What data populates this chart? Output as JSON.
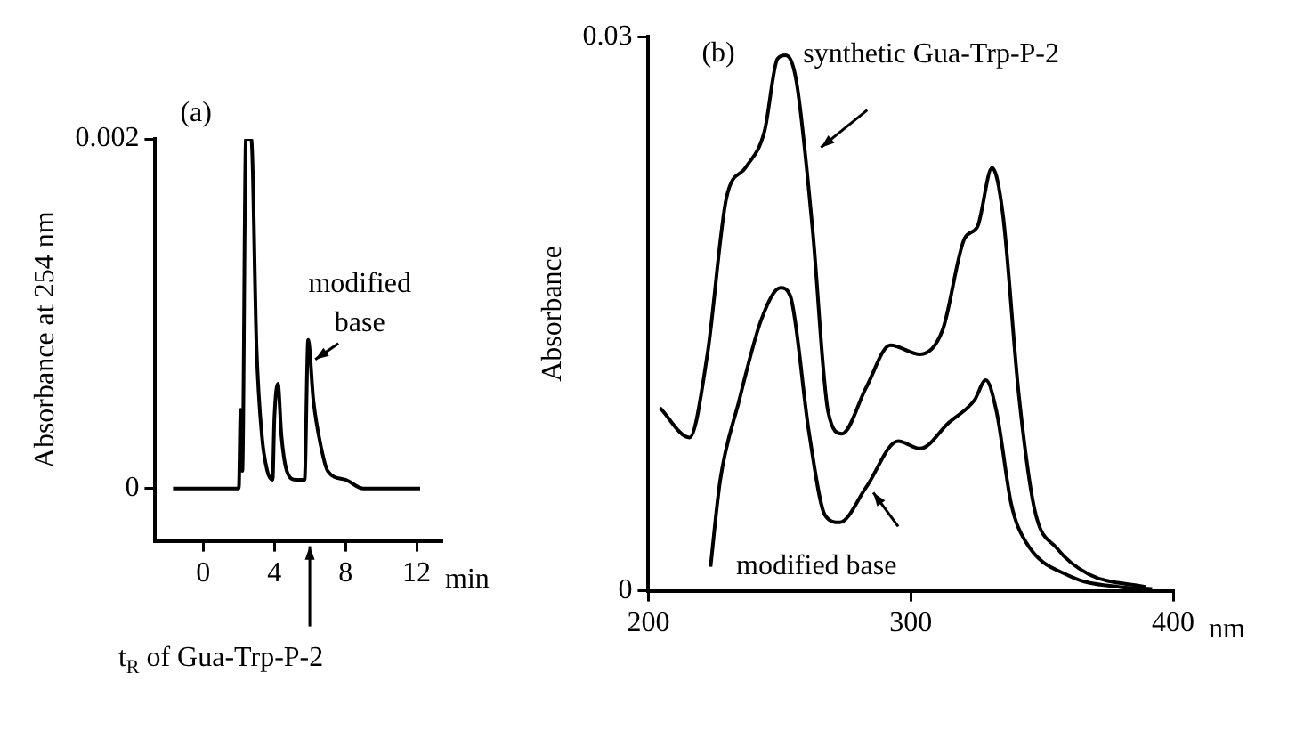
{
  "chart_data": [
    {
      "type": "line",
      "title": "(a)",
      "xlabel": "min",
      "ylabel": "Absorbance at 254 nm",
      "x": [
        -1.7,
        1.0,
        2.0,
        2.1,
        2.2,
        2.4,
        2.7,
        3.0,
        3.3,
        3.6,
        3.9,
        4.0,
        4.2,
        4.4,
        4.7,
        5.2,
        5.7,
        5.9,
        6.2,
        6.6,
        7.0,
        8.0,
        9.0,
        12.2
      ],
      "series": [
        {
          "color": "#000000",
          "values": [
            0,
            0,
            0,
            0.00045,
            0.0001,
            0.002,
            0.002,
            0.0008,
            0.0003,
            0.0001,
            5e-05,
            0.0004,
            0.0006,
            0.0003,
            0.0001,
            5e-05,
            5e-05,
            0.00085,
            0.0005,
            0.00025,
            0.0001,
            5e-05,
            0,
            0
          ]
        }
      ],
      "xlim": [
        -2.7,
        13.4
      ],
      "ylim": [
        -0.0003,
        0.002
      ],
      "xticks": [
        0,
        4,
        8,
        12
      ],
      "yticks": [
        0,
        0.002
      ],
      "annotations": [
        {
          "text": "modified base",
          "x": 5.9,
          "y": 0.00085
        },
        "t$_{R}$ of Gua-Trp-P-2"
      ]
    },
    {
      "type": "line",
      "title": "(b)",
      "xlabel": "nm",
      "ylabel": "Absorbance",
      "series": [
        {
          "color": "#000000",
          "x": [
            204.4,
            215.7,
            222.5,
            229.8,
            237,
            244.3,
            249.2,
            252.3,
            256.4,
            262.5,
            268.5,
            273.8,
            283,
            292.2,
            303.6,
            312.1,
            320.6,
            325.4,
            331,
            335.1,
            341.2,
            347.2,
            355.7,
            367.8,
            389.6
          ],
          "values": [
            0.0099,
            0.0083,
            0.0128,
            0.0213,
            0.0229,
            0.0249,
            0.0288,
            0.029,
            0.0276,
            0.0197,
            0.0097,
            0.0085,
            0.011,
            0.0133,
            0.0128,
            0.0141,
            0.0191,
            0.0197,
            0.0229,
            0.0204,
            0.0106,
            0.0044,
            0.0023,
            0.0009,
            0.0002
          ]
        },
        {
          "color": "#000000",
          "x": [
            223.7,
            227.4,
            234.6,
            243.1,
            250.4,
            254,
            261.3,
            267.3,
            272.9,
            283,
            295.2,
            303.6,
            314.5,
            324.2,
            328.6,
            332.7,
            338.3,
            343.6,
            360.5,
            379.9,
            392
          ],
          "values": [
            0.0013,
            0.006,
            0.0103,
            0.0147,
            0.0164,
            0.016,
            0.0085,
            0.0041,
            0.0037,
            0.0056,
            0.0081,
            0.0077,
            0.0091,
            0.0103,
            0.0114,
            0.0097,
            0.0047,
            0.0027,
            0.0008,
            0.0002,
            0.0001
          ]
        }
      ],
      "xlim": [
        200,
        400
      ],
      "ylim": [
        0,
        0.03
      ],
      "xticks": [
        200,
        300,
        400
      ],
      "yticks": [
        0,
        0.03
      ],
      "annotations": [
        {
          "text": "synthetic Gua-Trp-P-2",
          "x": 259,
          "y": 0.024
        },
        {
          "text": "modified base",
          "x": 283,
          "y": 0.0056
        }
      ]
    }
  ]
}
